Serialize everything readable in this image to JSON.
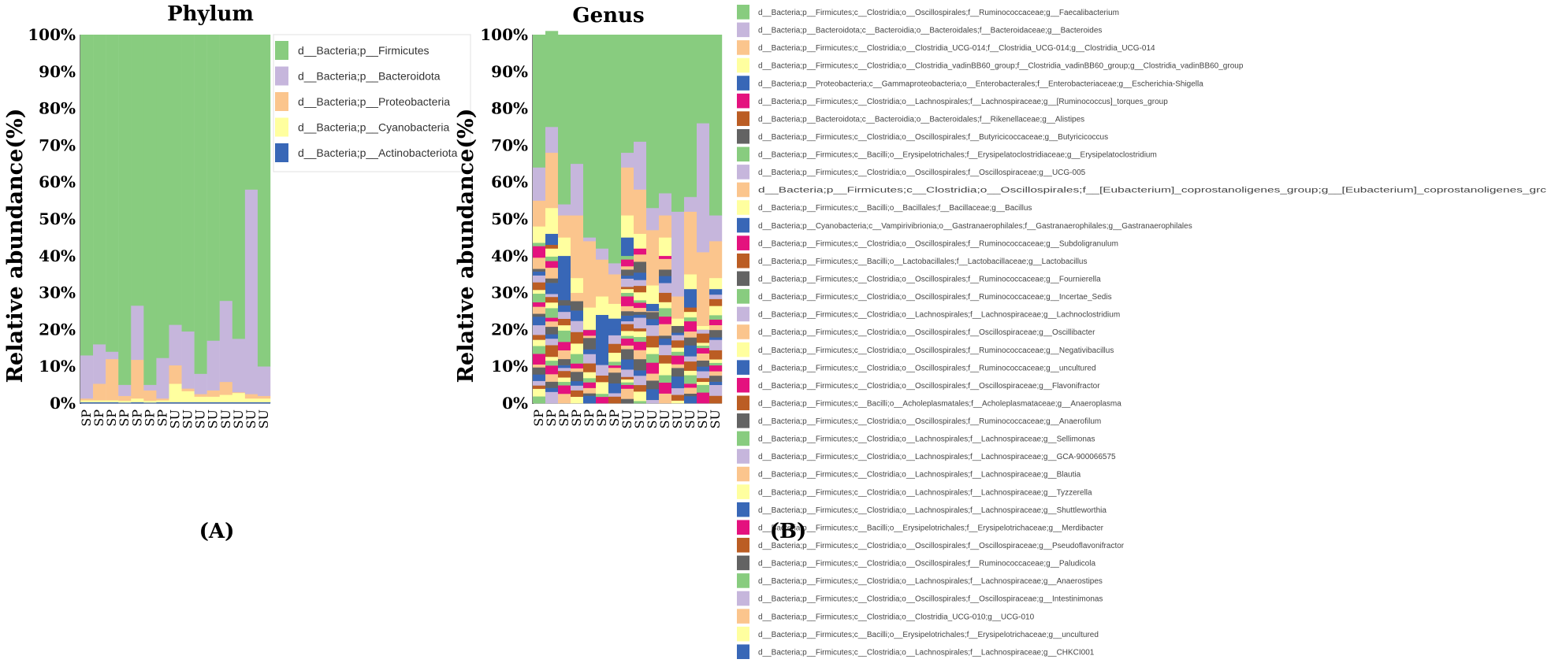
{
  "colors": {
    "palette": [
      "#88cc7f",
      "#c6b6dc",
      "#fbc58d",
      "#ffff9f",
      "#3867b7",
      "#e4127e",
      "#bb5d24",
      "#636363"
    ]
  },
  "chart_data": [
    {
      "id": "phylum",
      "type": "bar",
      "stacked": true,
      "normalized": true,
      "title": "Phylum",
      "panel_label": "(A)",
      "ylabel": "Relative abundance(%)",
      "xlabel": "",
      "ylim": [
        0,
        100
      ],
      "yticks": [
        "0%",
        "10%",
        "20%",
        "30%",
        "40%",
        "50%",
        "60%",
        "70%",
        "80%",
        "90%",
        "100%"
      ],
      "legend_position": "right",
      "categories": [
        "SP",
        "SP",
        "SP",
        "SP",
        "SP",
        "SP",
        "SP",
        "SU",
        "SU",
        "SU",
        "SU",
        "SU",
        "SU",
        "SU",
        "SU"
      ],
      "series": [
        {
          "name": "d__Bacteria;p__Actinobacteriota",
          "color": "#3867b7",
          "values": [
            0.3,
            0.3,
            0.3,
            0.2,
            0.3,
            0.2,
            0.3,
            0.3,
            0.3,
            0.3,
            0.3,
            0.3,
            0.3,
            0.3,
            0.3
          ]
        },
        {
          "name": "d__Bacteria;p__Cyanobacteria",
          "color": "#ffff9f",
          "values": [
            0.5,
            0.5,
            0.5,
            0.5,
            1,
            0.5,
            0.5,
            5,
            3,
            1.5,
            1.5,
            2,
            2.5,
            1,
            1
          ]
        },
        {
          "name": "d__Bacteria;p__Proteobacteria",
          "color": "#fbc58d",
          "values": [
            0.5,
            4.5,
            11.2,
            1.3,
            10.5,
            2.8,
            0.5,
            5,
            0.7,
            0.7,
            1.7,
            3.5,
            0.2,
            1.2,
            0.7
          ]
        },
        {
          "name": "d__Bacteria;p__Bacteroidota",
          "color": "#c6b6dc",
          "values": [
            11.7,
            10.7,
            2,
            3,
            14.7,
            1.5,
            11,
            11,
            15.5,
            5.5,
            13.5,
            22,
            14.5,
            55.5,
            8
          ]
        },
        {
          "name": "d__Bacteria;p__Firmicutes",
          "color": "#88cc7f",
          "values": [
            87,
            84,
            86,
            95,
            73.5,
            95,
            87.7,
            78.7,
            80.5,
            92,
            83,
            72.2,
            82.5,
            42,
            90
          ]
        }
      ]
    },
    {
      "id": "genus",
      "type": "bar",
      "stacked": true,
      "normalized": true,
      "title": "Genus",
      "panel_label": "(B)",
      "ylabel": "Relative abundance(%)",
      "xlabel": "",
      "ylim": [
        0,
        100
      ],
      "yticks": [
        "0%",
        "10%",
        "20%",
        "30%",
        "40%",
        "50%",
        "60%",
        "70%",
        "80%",
        "90%",
        "100%"
      ],
      "legend_position": "right",
      "categories": [
        "SP",
        "SP",
        "SP",
        "SP",
        "SP",
        "SP",
        "SP",
        "SU",
        "SU",
        "SU",
        "SU",
        "SU",
        "SU",
        "SU",
        "SU"
      ],
      "legend": [
        "d__Bacteria;p__Firmicutes;c__Clostridia;o__Oscillospirales;f__Ruminococcaceae;g__Faecalibacterium",
        "d__Bacteria;p__Bacteroidota;c__Bacteroidia;o__Bacteroidales;f__Bacteroidaceae;g__Bacteroides",
        "d__Bacteria;p__Firmicutes;c__Clostridia;o__Clostridia_UCG-014;f__Clostridia_UCG-014;g__Clostridia_UCG-014",
        "d__Bacteria;p__Firmicutes;c__Clostridia;o__Clostridia_vadinBB60_group;f__Clostridia_vadinBB60_group;g__Clostridia_vadinBB60_group",
        "d__Bacteria;p__Proteobacteria;c__Gammaproteobacteria;o__Enterobacterales;f__Enterobacteriaceae;g__Escherichia-Shigella",
        "d__Bacteria;p__Firmicutes;c__Clostridia;o__Lachnospirales;f__Lachnospiraceae;g__[Ruminococcus]_torques_group",
        "d__Bacteria;p__Bacteroidota;c__Bacteroidia;o__Bacteroidales;f__Rikenellaceae;g__Alistipes",
        "d__Bacteria;p__Firmicutes;c__Clostridia;o__Oscillospirales;f__Butyricicoccaceae;g__Butyricicoccus",
        "d__Bacteria;p__Firmicutes;c__Bacilli;o__Erysipelotrichales;f__Erysipelatoclostridiaceae;g__Erysipelatoclostridium",
        "d__Bacteria;p__Firmicutes;c__Clostridia;o__Oscillospirales;f__Oscillospiraceae;g__UCG-005",
        "d__Bacteria;p__Firmicutes;c__Clostridia;o__Oscillospirales;f__[Eubacterium]_coprostanoligenes_group;g__[Eubacterium]_coprostanoligenes_grc",
        "d__Bacteria;p__Firmicutes;c__Bacilli;o__Bacillales;f__Bacillaceae;g__Bacillus",
        "d__Bacteria;p__Cyanobacteria;c__Vampirivibrionia;o__Gastranaerophilales;f__Gastranaerophilales;g__Gastranaerophilales",
        "d__Bacteria;p__Firmicutes;c__Clostridia;o__Oscillospirales;f__Ruminococcaceae;g__Subdoligranulum",
        "d__Bacteria;p__Firmicutes;c__Bacilli;o__Lactobacillales;f__Lactobacillaceae;g__Lactobacillus",
        "d__Bacteria;p__Firmicutes;c__Clostridia;o__Oscillospirales;f__Ruminococcaceae;g__Fournierella",
        "d__Bacteria;p__Firmicutes;c__Clostridia;o__Oscillospirales;f__Ruminococcaceae;g__Incertae_Sedis",
        "d__Bacteria;p__Firmicutes;c__Clostridia;o__Lachnospirales;f__Lachnospiraceae;g__Lachnoclostridium",
        "d__Bacteria;p__Firmicutes;c__Clostridia;o__Oscillospirales;f__Oscillospiraceae;g__Oscillibacter",
        "d__Bacteria;p__Firmicutes;c__Clostridia;o__Oscillospirales;f__Ruminococcaceae;g__Negativibacillus",
        "d__Bacteria;p__Firmicutes;c__Clostridia;o__Oscillospirales;f__Ruminococcaceae;g__uncultured",
        "d__Bacteria;p__Firmicutes;c__Clostridia;o__Oscillospirales;f__Oscillospiraceae;g__Flavonifractor",
        "d__Bacteria;p__Firmicutes;c__Bacilli;o__Acholeplasmatales;f__Acholeplasmataceae;g__Anaeroplasma",
        "d__Bacteria;p__Firmicutes;c__Clostridia;o__Oscillospirales;f__Ruminococcaceae;g__Anaerofilum",
        "d__Bacteria;p__Firmicutes;c__Clostridia;o__Lachnospirales;f__Lachnospiraceae;g__Sellimonas",
        "d__Bacteria;p__Firmicutes;c__Clostridia;o__Lachnospirales;f__Lachnospiraceae;g__GCA-900066575",
        "d__Bacteria;p__Firmicutes;c__Clostridia;o__Lachnospirales;f__Lachnospiraceae;g__Blautia",
        "d__Bacteria;p__Firmicutes;c__Clostridia;o__Lachnospirales;f__Lachnospiraceae;g__Tyzzerella",
        "d__Bacteria;p__Firmicutes;c__Clostridia;o__Lachnospirales;f__Lachnospiraceae;g__Shuttleworthia",
        "d__Bacteria;p__Firmicutes;c__Bacilli;o__Erysipelotrichales;f__Erysipelotrichaceae;g__Merdibacter",
        "d__Bacteria;p__Firmicutes;c__Clostridia;o__Oscillospirales;f__Oscillospiraceae;g__Pseudoflavonifractor",
        "d__Bacteria;p__Firmicutes;c__Clostridia;o__Oscillospirales;f__Ruminococcaceae;g__Paludicola",
        "d__Bacteria;p__Firmicutes;c__Clostridia;o__Lachnospirales;f__Lachnospiraceae;g__Anaerostipes",
        "d__Bacteria;p__Firmicutes;c__Clostridia;o__Oscillospirales;f__Oscillospiraceae;g__Intestinimonas",
        "d__Bacteria;p__Firmicutes;c__Clostridia;o__Clostridia_UCG-010;g__UCG-010",
        "d__Bacteria;p__Firmicutes;c__Bacilli;o__Erysipelotrichales;f__Erysipelotrichaceae;g__uncultured",
        "d__Bacteria;p__Firmicutes;c__Clostridia;o__Lachnospirales;f__Lachnospiraceae;g__CHKCI001"
      ],
      "major_series": [
        {
          "name": "d__Bacteria;p__Proteobacteria;c__Gammaproteobacteria;o__Enterobacterales;f__Enterobacteriaceae;g__Escherichia-Shigella",
          "color": "#3867b7",
          "values": [
            0,
            3,
            12,
            0,
            0,
            12,
            3,
            5,
            0,
            2,
            0,
            0,
            5,
            0,
            0
          ]
        },
        {
          "name": "d__Bacteria;p__Firmicutes;c__Clostridia;o__Clostridia_vadinBB60_group;f__Clostridia_vadinBB60_group;g__Clostridia_vadinBB60_group",
          "color": "#ffff9f",
          "values": [
            4,
            7,
            5,
            4,
            6,
            5,
            4,
            6,
            4,
            5,
            5,
            2,
            4,
            1,
            3
          ]
        },
        {
          "name": "d__Bacteria;p__Firmicutes;c__Clostridia;o__Clostridia_UCG-014;f__Clostridia_UCG-014;g__Clostridia_UCG-014",
          "color": "#fbc58d",
          "values": [
            7,
            15,
            6,
            17,
            18,
            10,
            8,
            13,
            12,
            15,
            6,
            6,
            17,
            20,
            10
          ]
        },
        {
          "name": "d__Bacteria;p__Bacteroidota;c__Bacteroidia;o__Bacteroidales;f__Bacteroidaceae;g__Bacteroides",
          "color": "#c6b6dc",
          "values": [
            9,
            7,
            3,
            14,
            1,
            3,
            3,
            4,
            13,
            6,
            6,
            23,
            4,
            35,
            7
          ]
        },
        {
          "name": "d__Bacteria;p__Firmicutes;c__Clostridia;o__Oscillospirales;f__Ruminococcaceae;g__Faecalibacterium",
          "color": "#88cc7f",
          "values": [
            36,
            26,
            46,
            35,
            55,
            58,
            62,
            32,
            29,
            47,
            43,
            48,
            44,
            24,
            49
          ]
        }
      ],
      "lower_total": [
        44,
        43,
        28,
        30,
        20,
        12,
        20,
        40,
        42,
        25,
        40,
        21,
        26,
        20,
        31
      ]
    }
  ]
}
